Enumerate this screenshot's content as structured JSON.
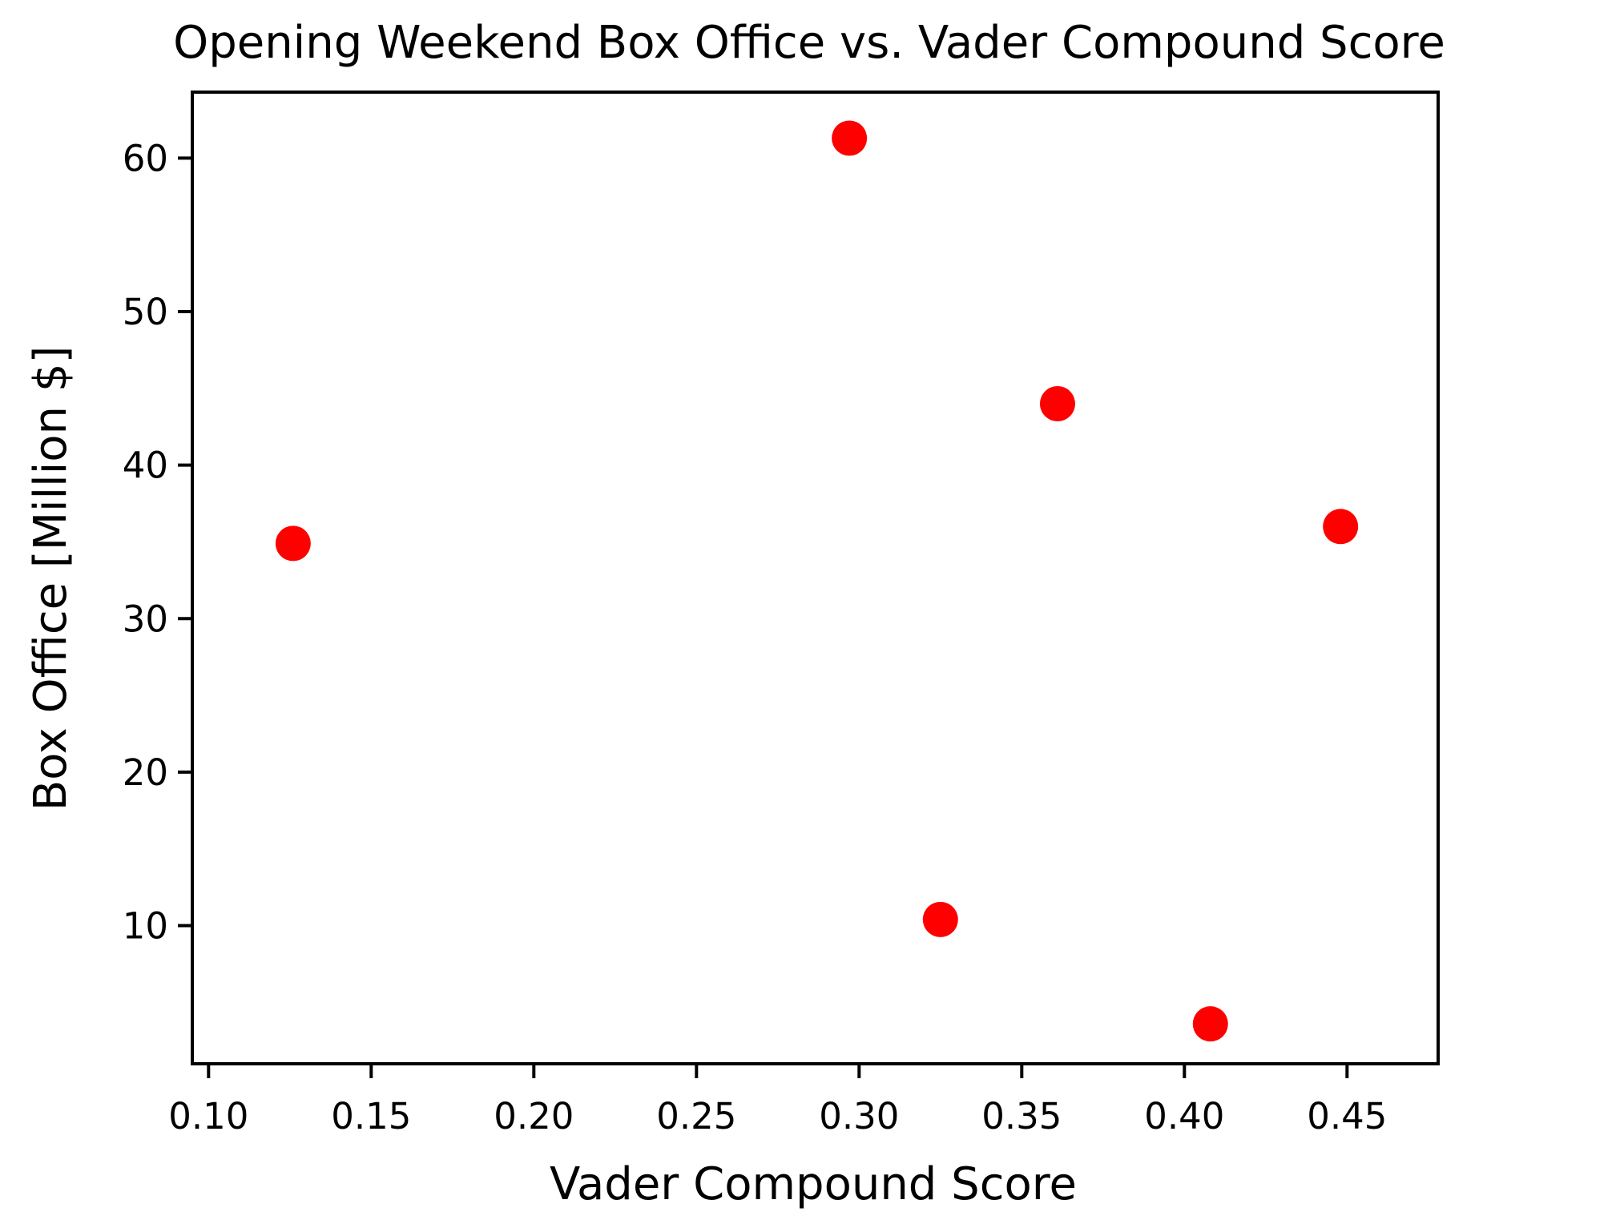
{
  "chart_data": {
    "type": "scatter",
    "title": "Opening Weekend Box Office vs. Vader Compound Score",
    "xlabel": "Vader Compound Score",
    "ylabel": "Box Office [Million $]",
    "xlim": [
      0.095,
      0.478
    ],
    "ylim": [
      1.0,
      64.3
    ],
    "x_ticks": [
      0.1,
      0.15,
      0.2,
      0.25,
      0.3,
      0.35,
      0.4,
      0.45
    ],
    "x_tick_labels": [
      "0.10",
      "0.15",
      "0.20",
      "0.25",
      "0.30",
      "0.35",
      "0.40",
      "0.45"
    ],
    "y_ticks": [
      10,
      20,
      30,
      40,
      50,
      60
    ],
    "y_tick_labels": [
      "10",
      "20",
      "30",
      "40",
      "50",
      "60"
    ],
    "grid": false,
    "legend": false,
    "marker_color": "#ff0000",
    "points": [
      {
        "x": 0.126,
        "y": 34.9
      },
      {
        "x": 0.297,
        "y": 61.3
      },
      {
        "x": 0.325,
        "y": 10.4
      },
      {
        "x": 0.361,
        "y": 44.0
      },
      {
        "x": 0.408,
        "y": 3.6
      },
      {
        "x": 0.448,
        "y": 36.0
      }
    ]
  }
}
